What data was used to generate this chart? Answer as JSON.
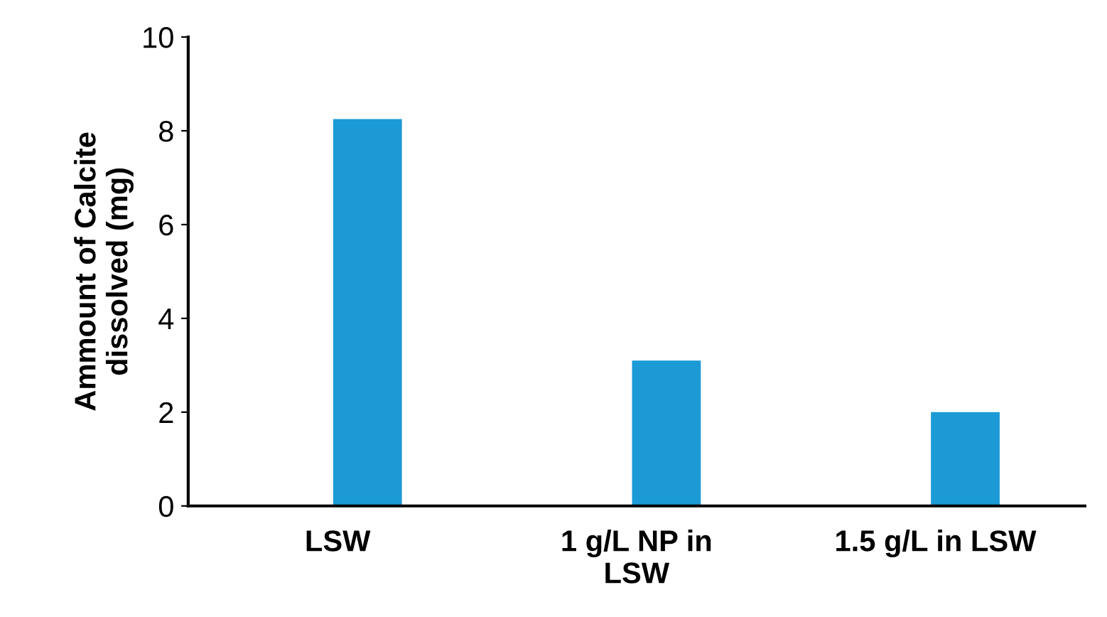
{
  "chart_data": {
    "type": "bar",
    "ylabel": "Ammount of Calcite\ndissolved (mg)",
    "categories": [
      "LSW",
      "1 g/L NP in\nLSW",
      "1.5 g/L in LSW"
    ],
    "values": [
      8.25,
      3.1,
      2.0
    ],
    "color": "#1b9ad6",
    "ylim": [
      0,
      10
    ],
    "yticks": [
      0,
      2,
      4,
      6,
      8,
      10
    ],
    "grid": false,
    "legend": false
  }
}
